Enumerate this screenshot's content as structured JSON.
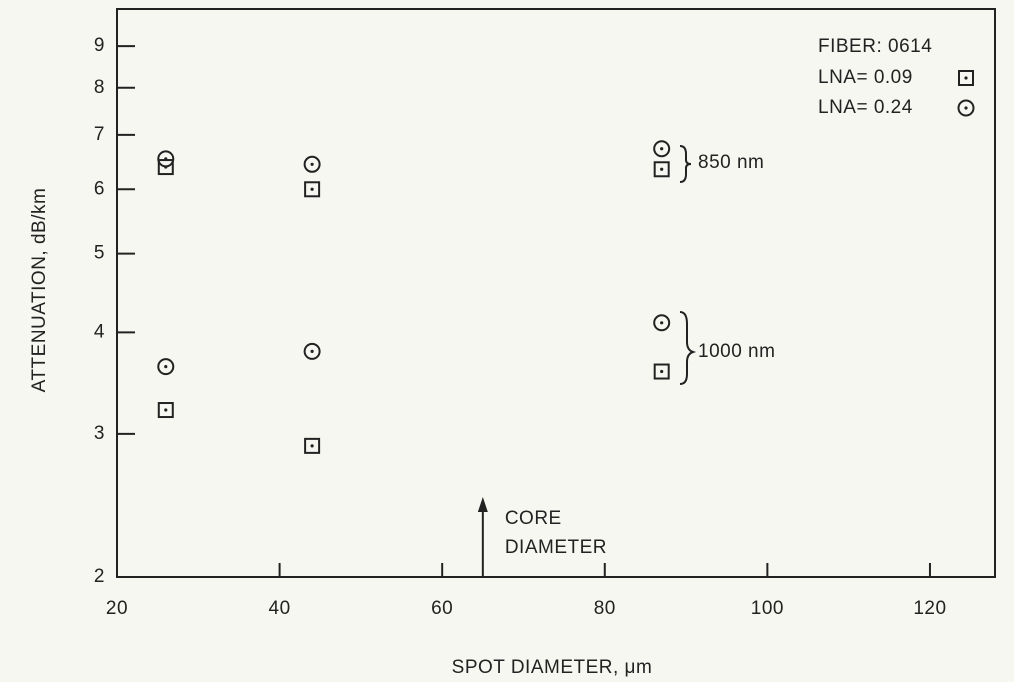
{
  "chart_data": {
    "type": "scatter",
    "xlabel": "SPOT DIAMETER,  μm",
    "ylabel": "ATTENUATION, dB/km",
    "xlim": [
      20,
      128
    ],
    "ylim": [
      2,
      10
    ],
    "ylog": true,
    "xticks": [
      20,
      40,
      60,
      80,
      100,
      120
    ],
    "yticks": [
      2,
      3,
      4,
      5,
      6,
      7,
      8,
      9
    ],
    "legend_title": "FIBER: 0614",
    "legend_position": "upper right",
    "series": [
      {
        "name": "LNA= 0.09",
        "marker": "square",
        "color": "#222222",
        "x": [
          26,
          44,
          87,
          26,
          44,
          87
        ],
        "values": [
          6.39,
          6.0,
          6.35,
          3.21,
          2.9,
          3.58
        ]
      },
      {
        "name": "LNA= 0.24",
        "marker": "circle",
        "color": "#222222",
        "x": [
          26,
          44,
          87,
          26,
          44,
          87
        ],
        "values": [
          6.54,
          6.44,
          6.73,
          3.63,
          3.79,
          4.11
        ]
      }
    ],
    "annotations": [
      {
        "text": "850 nm"
      },
      {
        "text": "1000 nm"
      },
      {
        "lines": [
          "CORE",
          "DIAMETER"
        ],
        "x": 65
      }
    ]
  }
}
